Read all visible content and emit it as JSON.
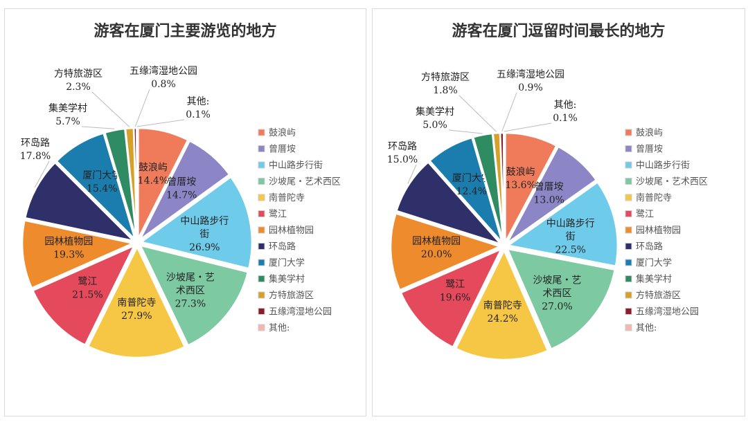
{
  "chart_data": [
    {
      "type": "pie",
      "title": "游客在厦门主要游览的地方",
      "unit": "%",
      "legend": "right",
      "categories": [
        "鼓浪屿",
        "曾厝垵",
        "中山路步行街",
        "沙坡尾・艺术西区",
        "南普陀寺",
        "鹭江",
        "园林植物园",
        "环岛路",
        "厦门大学",
        "集美学村",
        "方特旅游区",
        "五缘湾湿地公园",
        "其他:"
      ],
      "values": [
        14.4,
        14.7,
        26.9,
        27.3,
        27.9,
        21.5,
        19.3,
        17.8,
        15.4,
        5.7,
        2.3,
        0.8,
        0.1
      ],
      "labels": [
        "14.4%",
        "14.7%",
        "26.9%",
        "27.3%",
        "27.9%",
        "21.5%",
        "19.3%",
        "17.8%",
        "15.4%",
        "5.7%",
        "2.3%",
        "0.8%",
        "0.1%"
      ]
    },
    {
      "type": "pie",
      "title": "游客在厦门逗留时间最长的地方",
      "unit": "%",
      "legend": "right",
      "categories": [
        "鼓浪屿",
        "曾厝垵",
        "中山路步行街",
        "沙坡尾・艺术西区",
        "南普陀寺",
        "鹭江",
        "园林植物园",
        "环岛路",
        "厦门大学",
        "集美学村",
        "方特旅游区",
        "五缘湾湿地公园",
        "其他:"
      ],
      "values": [
        13.6,
        13.0,
        22.5,
        27.0,
        24.2,
        19.6,
        20.0,
        15.0,
        12.4,
        5.0,
        1.8,
        0.9,
        0.1
      ],
      "labels": [
        "13.6%",
        "13.0%",
        "22.5%",
        "27.0%",
        "24.2%",
        "19.6%",
        "20.0%",
        "15.0%",
        "12.4%",
        "5.0%",
        "1.8%",
        "0.9%",
        "0.1%"
      ]
    }
  ],
  "colors": [
    "#EF7B5B",
    "#8C86C6",
    "#6FCBEA",
    "#7DC9A2",
    "#F6C744",
    "#E5495C",
    "#EE8B2C",
    "#2F2F6A",
    "#1A7DAE",
    "#2E8B62",
    "#D6A12B",
    "#8A1C2C",
    "#F3B7AE"
  ]
}
